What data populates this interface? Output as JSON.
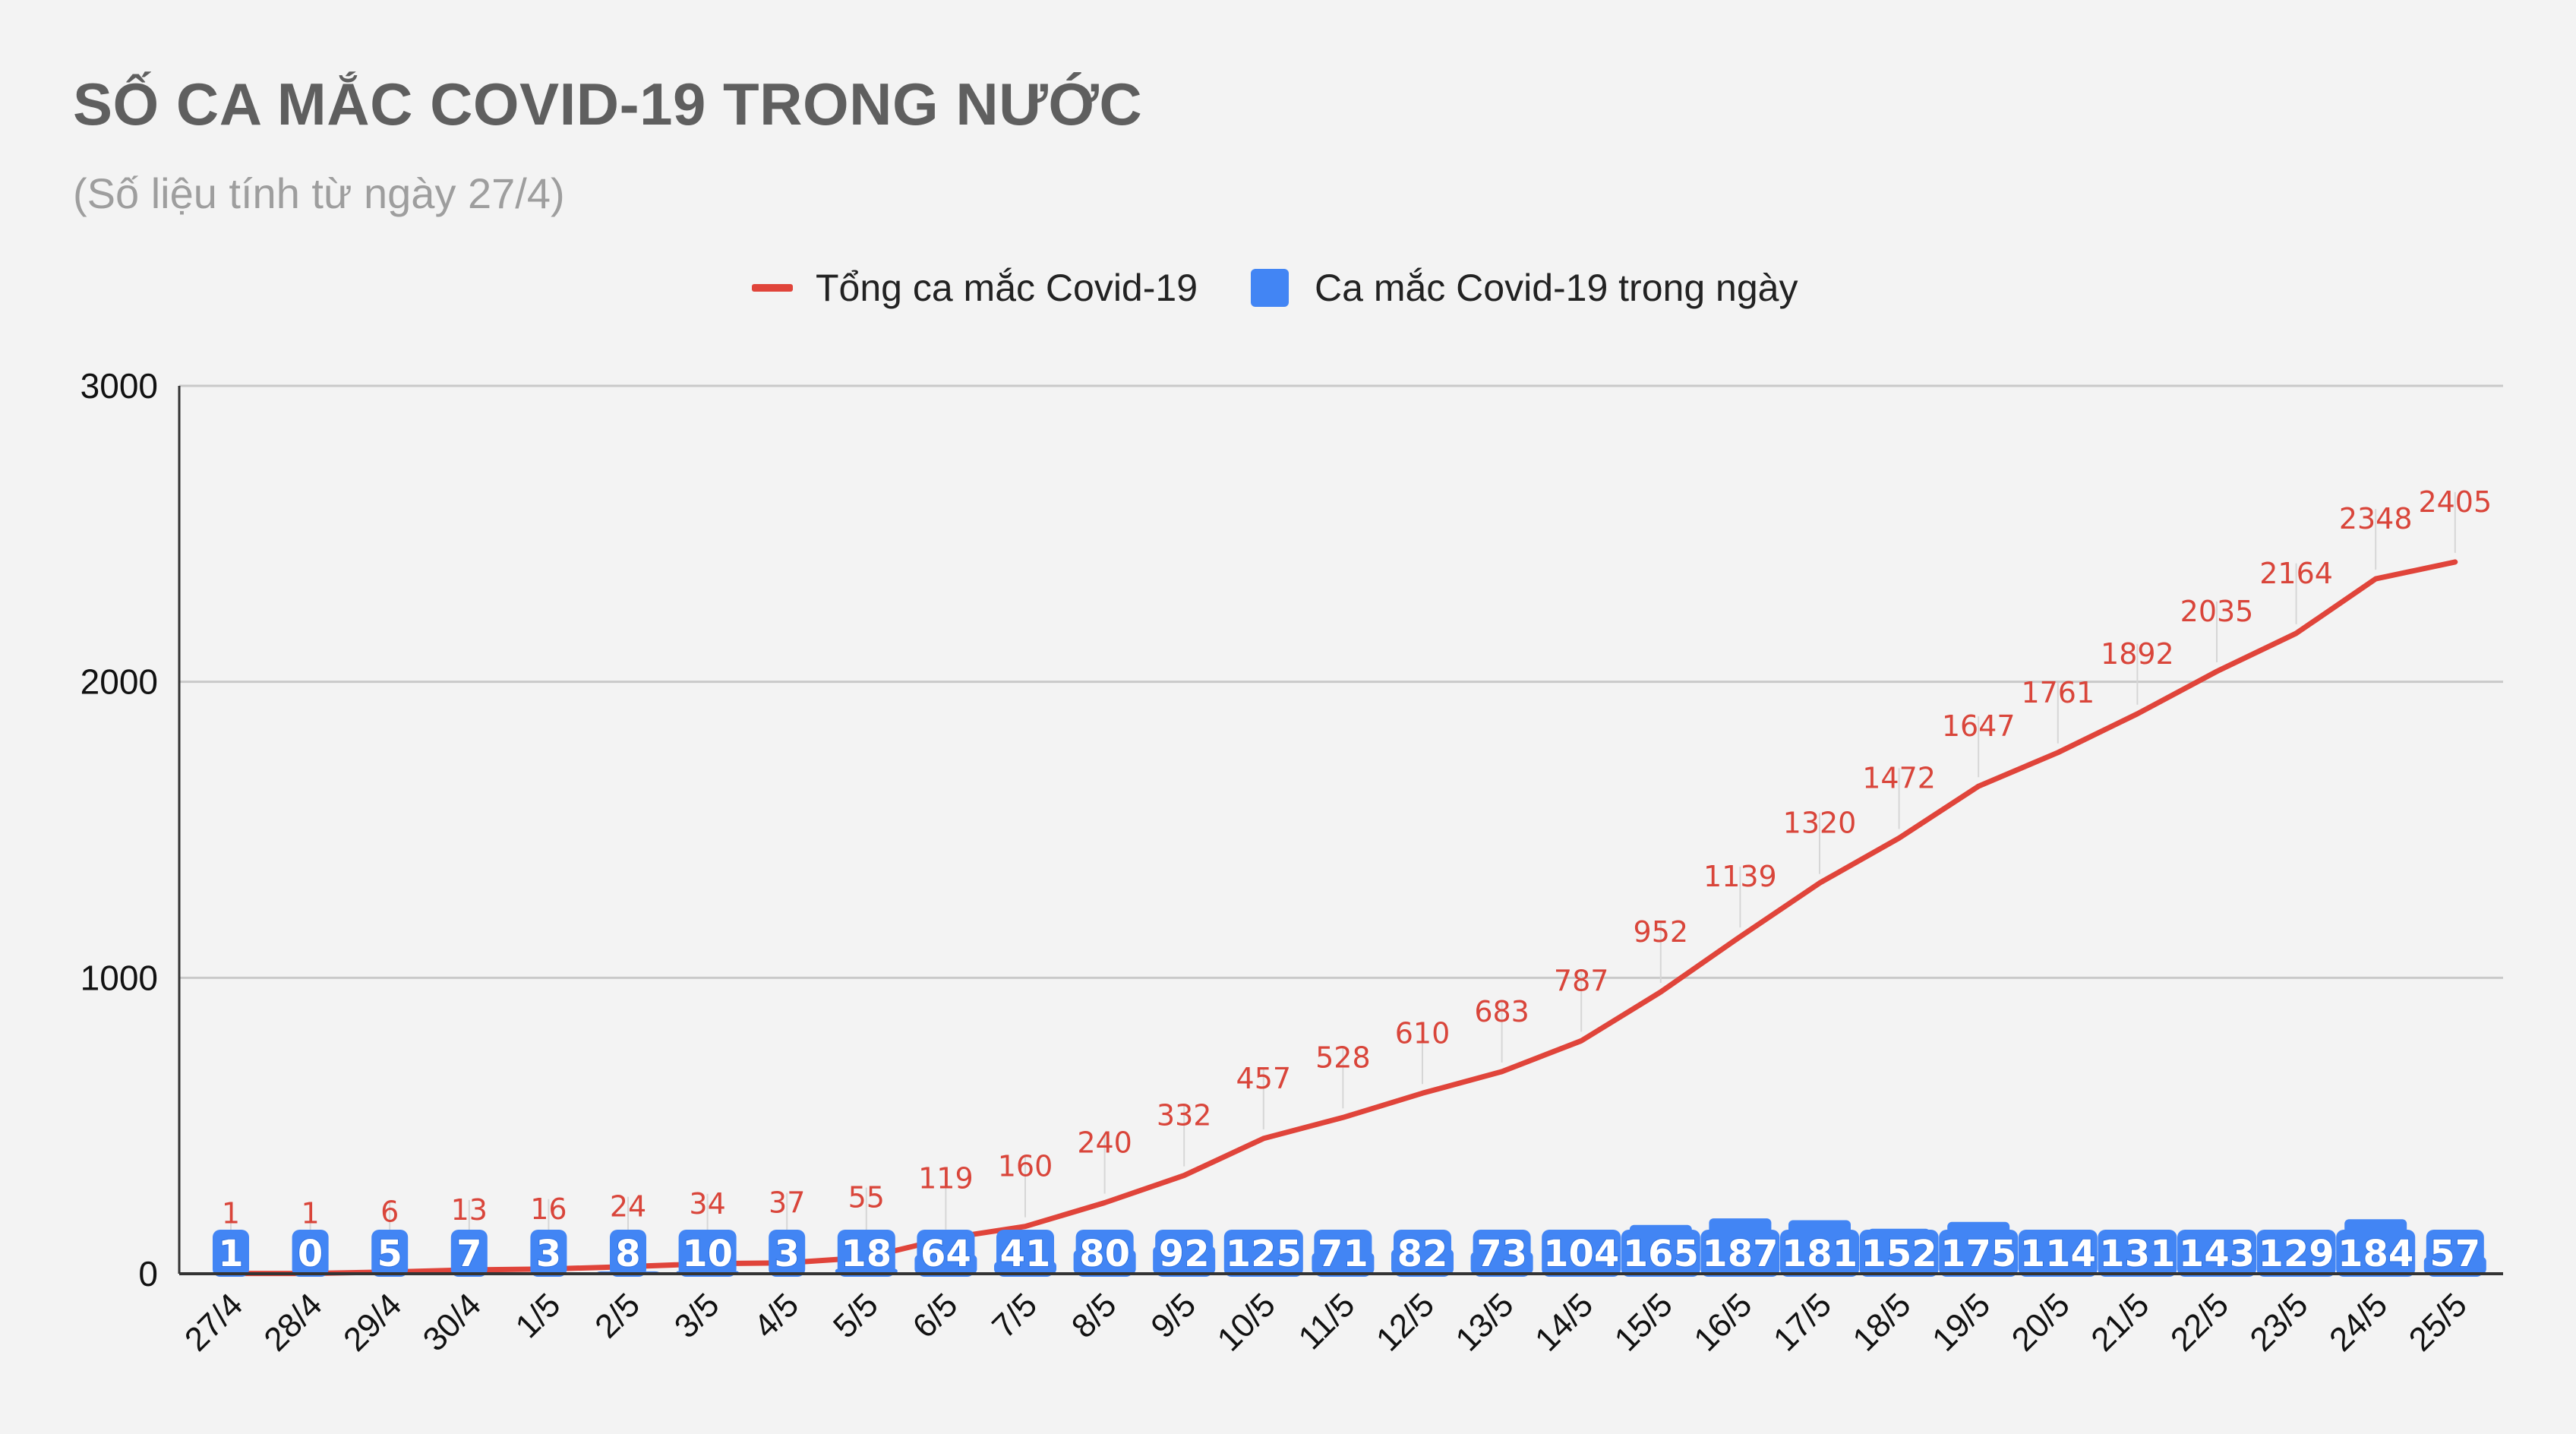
{
  "title": "SỐ CA MẮC COVID-19 TRONG NƯỚC",
  "subtitle": "(Số liệu tính từ ngày 27/4)",
  "colors": {
    "total_line": "#e0443a",
    "daily_bar": "#4285f4",
    "daily_bar_dark": "#2c6fe0",
    "grid": "#c9c9c9",
    "axis": "#333333",
    "total_label": "#d9453a",
    "background": "#f3f3f3"
  },
  "chart_data": {
    "type": "line",
    "categories": [
      "27/4",
      "28/4",
      "29/4",
      "30/4",
      "1/5",
      "2/5",
      "3/5",
      "4/5",
      "5/5",
      "6/5",
      "7/5",
      "8/5",
      "9/5",
      "10/5",
      "11/5",
      "12/5",
      "13/5",
      "14/5",
      "15/5",
      "16/5",
      "17/5",
      "18/5",
      "19/5",
      "20/5",
      "21/5",
      "22/5",
      "23/5",
      "24/5",
      "25/5"
    ],
    "series": [
      {
        "name": "Tổng ca mắc Covid-19",
        "kind": "line",
        "values": [
          1,
          1,
          6,
          13,
          16,
          24,
          34,
          37,
          55,
          119,
          160,
          240,
          332,
          457,
          528,
          610,
          683,
          787,
          952,
          1139,
          1320,
          1472,
          1647,
          1761,
          1892,
          2035,
          2164,
          2348,
          2405
        ]
      },
      {
        "name": "Ca mắc Covid-19 trong ngày",
        "kind": "bar",
        "values": [
          1,
          0,
          5,
          7,
          3,
          8,
          10,
          3,
          18,
          64,
          41,
          80,
          92,
          125,
          71,
          82,
          73,
          104,
          165,
          187,
          181,
          152,
          175,
          114,
          131,
          143,
          129,
          184,
          57
        ]
      }
    ],
    "yticks": [
      0,
      1000,
      2000,
      3000
    ],
    "ylim": [
      0,
      3000
    ],
    "grid": true,
    "legend_position": "top"
  }
}
